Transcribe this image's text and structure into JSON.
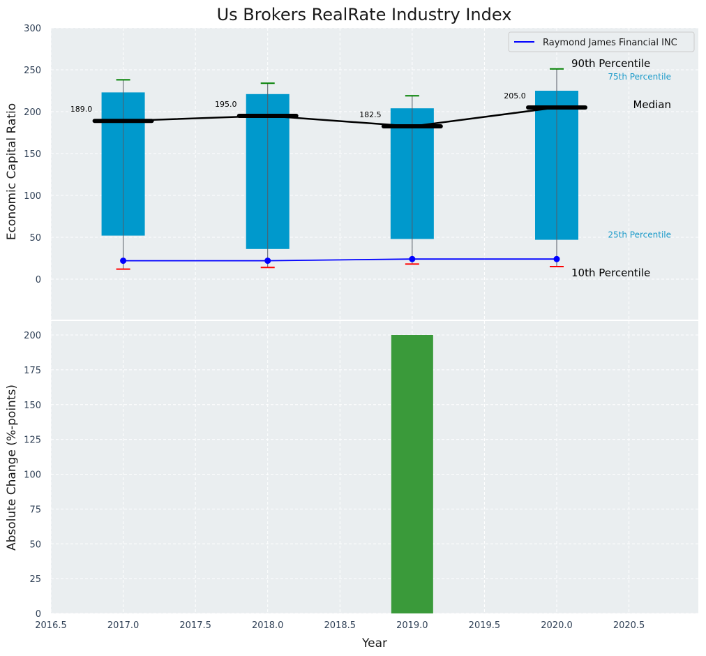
{
  "chart_data": [
    {
      "type": "bar",
      "title": "Us Brokers RealRate Industry Index",
      "ylabel": "Economic Capital Ratio",
      "ylim": [
        -50,
        300
      ],
      "yticks": [
        "0",
        "50",
        "100",
        "150",
        "200",
        "250",
        "300"
      ],
      "grid": true,
      "legend_position": "top-right",
      "x": [
        2017,
        2018,
        2019,
        2020
      ],
      "p10": [
        12,
        14,
        18,
        15
      ],
      "p25": [
        52,
        36,
        48,
        47
      ],
      "median": [
        189.0,
        195.0,
        182.5,
        205.0
      ],
      "median_labels": [
        "189.0",
        "195.0",
        "182.5",
        "205.0"
      ],
      "p75": [
        223,
        221,
        204,
        225
      ],
      "p90": [
        238,
        234,
        219,
        251
      ],
      "company_series": {
        "name": "Raymond James Financial INC",
        "values": [
          22,
          22,
          24,
          24
        ],
        "color": "#0000ff"
      },
      "annotations": {
        "p90": "90th Percentile",
        "p75": "75th Percentile",
        "median": "Median",
        "p25": "25th Percentile",
        "p10": "10th Percentile"
      },
      "colors": {
        "box": "#0099cc",
        "p90_cap": "#008000",
        "p10_cap": "#ff0000",
        "median": "#000000"
      }
    },
    {
      "type": "bar",
      "ylabel": "Absolute Change (%-points)",
      "xlabel": "Year",
      "ylim": [
        0,
        210
      ],
      "yticks": [
        "0",
        "25",
        "50",
        "75",
        "100",
        "125",
        "150",
        "175",
        "200"
      ],
      "xlim": [
        2016.5,
        2020.98
      ],
      "xticks": [
        "2016.5",
        "2017.0",
        "2017.5",
        "2018.0",
        "2018.5",
        "2019.0",
        "2019.5",
        "2020.0",
        "2020.5"
      ],
      "grid": true,
      "bars": [
        {
          "x": 2019,
          "value": 200
        }
      ],
      "colors": {
        "bar": "#3a9a3a"
      }
    }
  ]
}
